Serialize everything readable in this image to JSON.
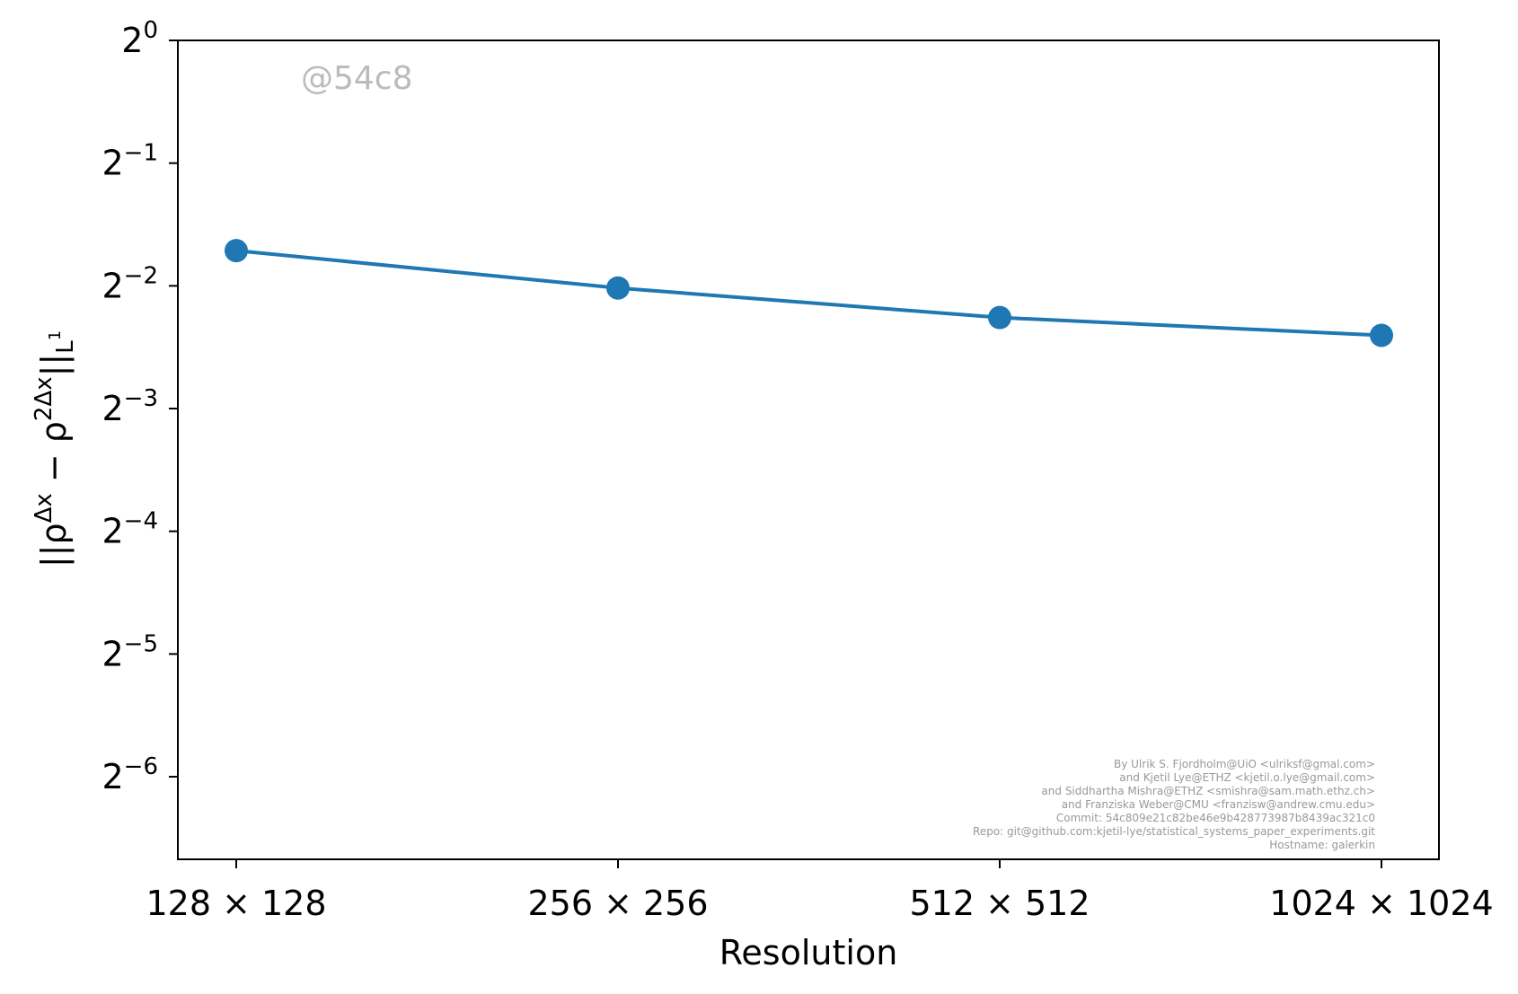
{
  "chart_data": {
    "type": "line",
    "title": "",
    "xlabel": "Resolution",
    "ylabel_parts": {
      "open": "||ρ",
      "sup1": "Δx",
      "minus": " − ρ",
      "sup2": "2Δx",
      "close": "||",
      "sub": "L",
      "subsup": "1"
    },
    "categories": [
      "128 × 128",
      "256 × 256",
      "512 × 512",
      "1024 × 1024"
    ],
    "series": [
      {
        "values": [
          0.305,
          0.247,
          0.209,
          0.189
        ],
        "color": "#1f77b4"
      }
    ],
    "y_scale": "log2",
    "ylim": [
      0.0098,
      1.0
    ],
    "yticks": [
      {
        "value": 1.0,
        "base": "2",
        "exp": "0"
      },
      {
        "value": 0.5,
        "base": "2",
        "exp": "−1"
      },
      {
        "value": 0.25,
        "base": "2",
        "exp": "−2"
      },
      {
        "value": 0.125,
        "base": "2",
        "exp": "−3"
      },
      {
        "value": 0.0625,
        "base": "2",
        "exp": "−4"
      },
      {
        "value": 0.03125,
        "base": "2",
        "exp": "−5"
      },
      {
        "value": 0.015625,
        "base": "2",
        "exp": "−6"
      }
    ],
    "grid": false,
    "legend": "none"
  },
  "watermark": "@54c8",
  "credits": [
    "By Ulrik S. Fjordholm@UiO <ulriksf@gmal.com>",
    "and Kjetil Lye@ETHZ <kjetil.o.lye@gmail.com>",
    "and Siddhartha Mishra@ETHZ <smishra@sam.math.ethz.ch>",
    "and Franziska Weber@CMU <franzisw@andrew.cmu.edu>",
    "Commit: 54c809e21c82be46e9b428773987b8439ac321c0",
    "Repo: git@github.com:kjetil-lye/statistical_systems_paper_experiments.git",
    "Hostname: galerkin"
  ],
  "colors": {
    "series": "#1f77b4",
    "watermark": "#bbbbbb",
    "credits": "#999999"
  }
}
